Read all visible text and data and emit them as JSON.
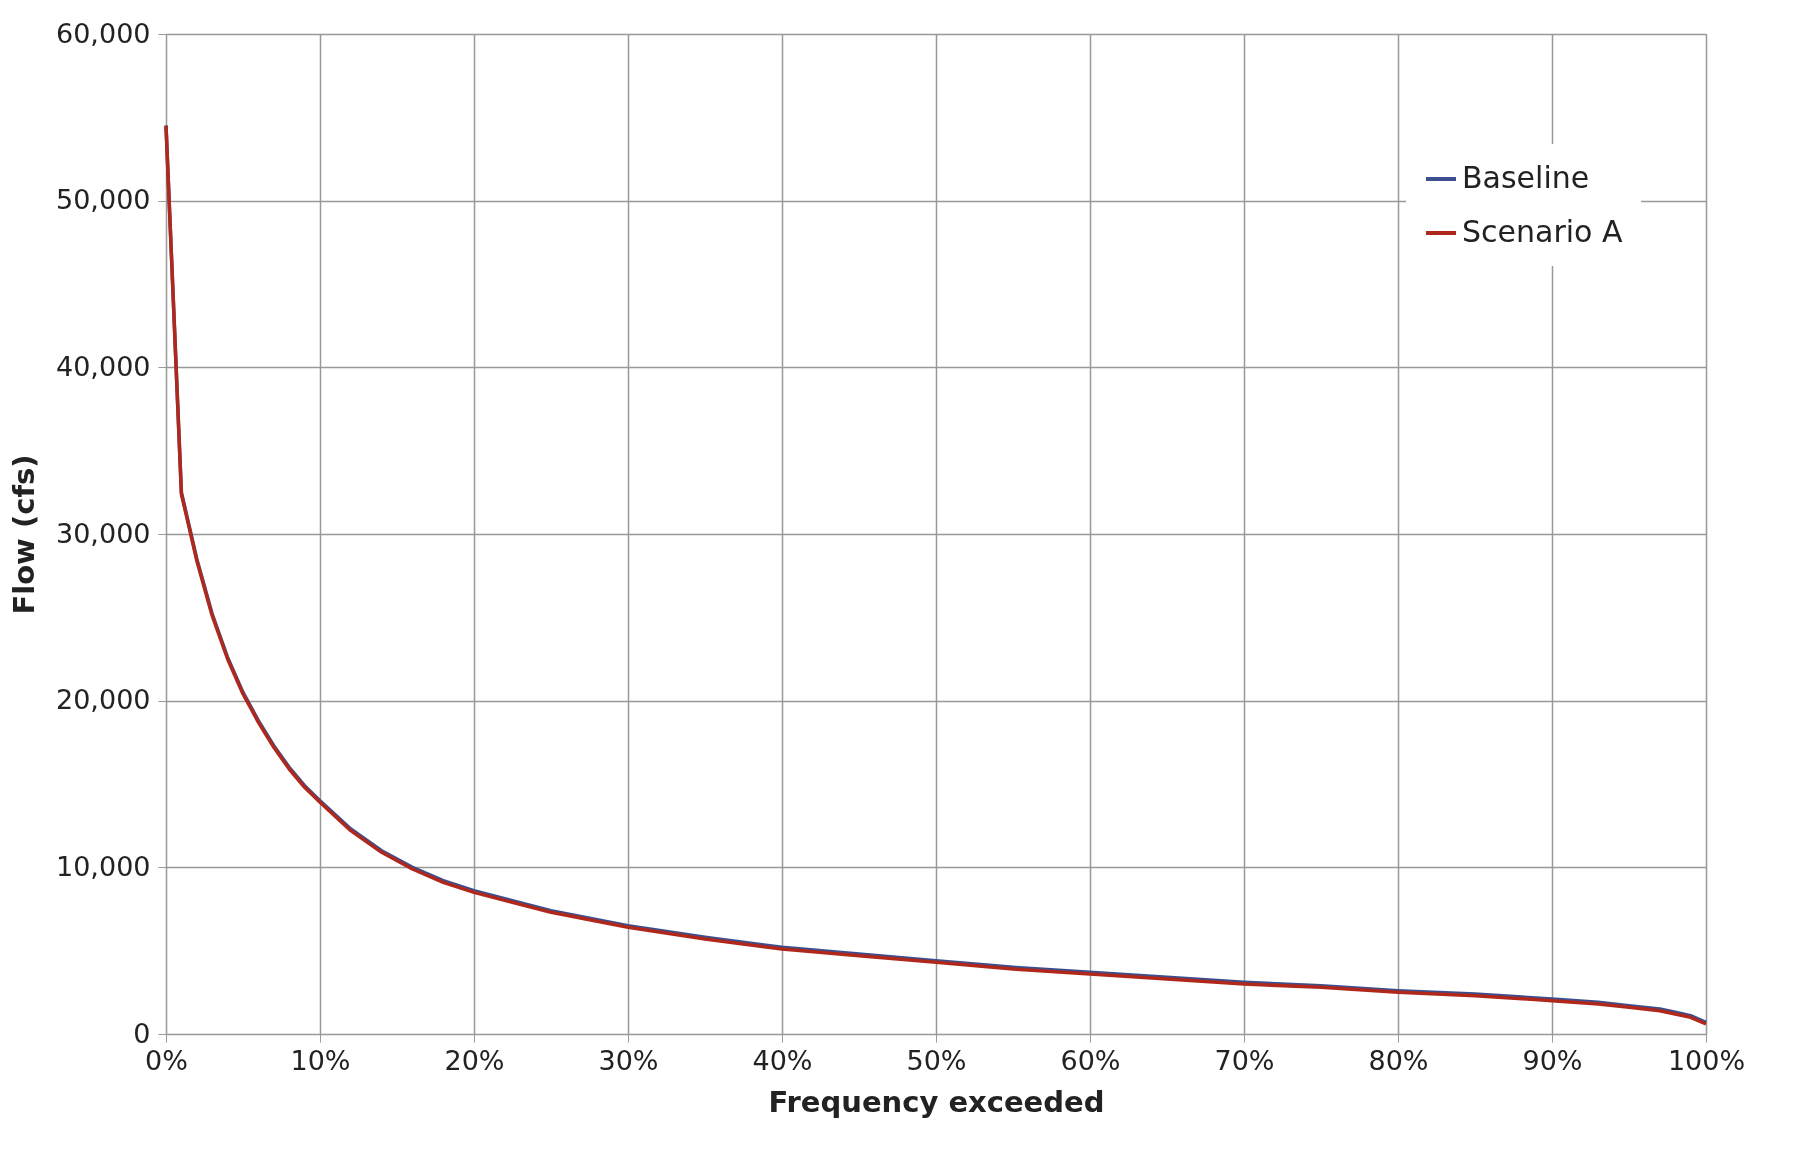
{
  "chart_data": {
    "type": "line",
    "xlabel": "Frequency exceeded",
    "ylabel": "Flow (cfs)",
    "x": [
      0,
      1,
      2,
      3,
      4,
      5,
      6,
      7,
      8,
      9,
      10,
      12,
      14,
      16,
      18,
      20,
      25,
      30,
      35,
      40,
      45,
      50,
      55,
      60,
      65,
      70,
      75,
      80,
      85,
      90,
      93,
      95,
      97,
      98,
      99,
      100
    ],
    "series": [
      {
        "name": "Baseline",
        "color": "#3b4f8e",
        "values": [
          54500,
          32500,
          28500,
          25200,
          22600,
          20500,
          18800,
          17300,
          16000,
          14900,
          14000,
          12300,
          11000,
          10000,
          9200,
          8600,
          7400,
          6500,
          5800,
          5200,
          4800,
          4400,
          4000,
          3700,
          3400,
          3100,
          2900,
          2600,
          2400,
          2100,
          1900,
          1700,
          1500,
          1300,
          1100,
          700
        ]
      },
      {
        "name": "Scenario A",
        "color": "#b0281c",
        "values": [
          54500,
          32400,
          28400,
          25100,
          22500,
          20400,
          18700,
          17200,
          15900,
          14800,
          13900,
          12200,
          10900,
          9900,
          9100,
          8500,
          7300,
          6400,
          5700,
          5100,
          4700,
          4300,
          3900,
          3600,
          3300,
          3000,
          2800,
          2500,
          2300,
          2000,
          1800,
          1600,
          1400,
          1200,
          1000,
          600
        ]
      }
    ],
    "xlim": [
      0,
      100
    ],
    "xticks": [
      {
        "value": 0,
        "label": "0%"
      },
      {
        "value": 10,
        "label": "10%"
      },
      {
        "value": 20,
        "label": "20%"
      },
      {
        "value": 30,
        "label": "30%"
      },
      {
        "value": 40,
        "label": "40%"
      },
      {
        "value": 50,
        "label": "50%"
      },
      {
        "value": 60,
        "label": "60%"
      },
      {
        "value": 70,
        "label": "70%"
      },
      {
        "value": 80,
        "label": "80%"
      },
      {
        "value": 90,
        "label": "90%"
      },
      {
        "value": 100,
        "label": "100%"
      }
    ],
    "ylim": [
      0,
      60000
    ],
    "yticks": [
      {
        "value": 0,
        "label": "0"
      },
      {
        "value": 10000,
        "label": "10,000"
      },
      {
        "value": 20000,
        "label": "20,000"
      },
      {
        "value": 30000,
        "label": "30,000"
      },
      {
        "value": 40000,
        "label": "40,000"
      },
      {
        "value": 50000,
        "label": "50,000"
      },
      {
        "value": 60000,
        "label": "60,000"
      }
    ],
    "grid": true,
    "legend": "top right",
    "marker": "none",
    "line_style": "solid"
  }
}
